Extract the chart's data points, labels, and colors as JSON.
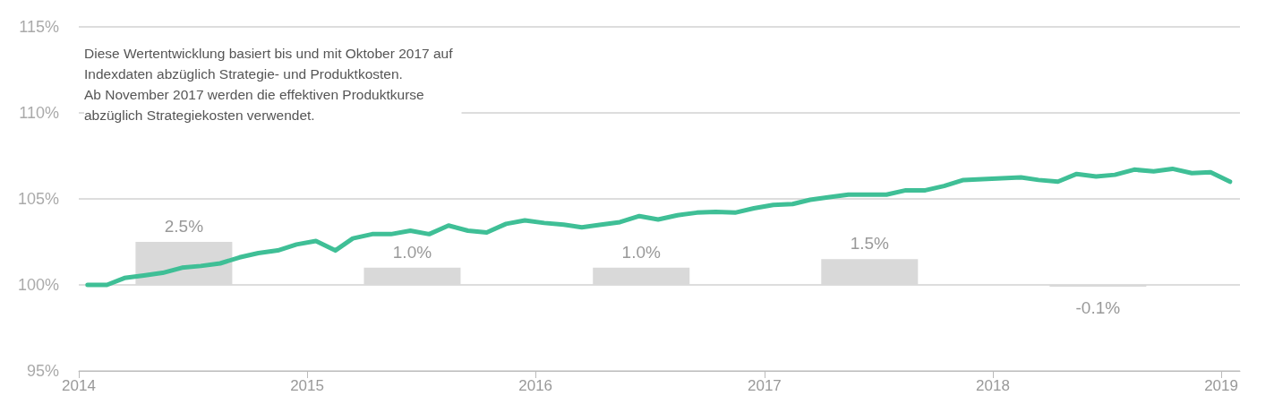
{
  "chart_data": {
    "type": "line",
    "annotations": [
      "Diese Wertentwicklung basiert bis und mit Oktober 2017 auf\nIndexdaten abzüglich Strategie- und Produktkosten.\nAb November 2017 werden die effektiven Produktkurse\nabzüglich Strategiekosten verwendet."
    ],
    "series": [
      {
        "color": "#3fbf96",
        "x": [
          "2014-01-15",
          "2014-02-15",
          "2014-03-15",
          "2014-04-15",
          "2014-05-15",
          "2014-06-15",
          "2014-07-15",
          "2014-08-15",
          "2014-09-15",
          "2014-10-15",
          "2014-11-15",
          "2014-12-15",
          "2015-01-15",
          "2015-02-15",
          "2015-03-15",
          "2015-04-15",
          "2015-05-15",
          "2015-06-15",
          "2015-07-15",
          "2015-08-15",
          "2015-09-15",
          "2015-10-15",
          "2015-11-15",
          "2015-12-15",
          "2016-01-15",
          "2016-02-15",
          "2016-03-15",
          "2016-04-15",
          "2016-05-15",
          "2016-06-15",
          "2016-07-15",
          "2016-08-15",
          "2016-09-15",
          "2016-10-15",
          "2016-11-15",
          "2016-12-15",
          "2017-01-15",
          "2017-02-15",
          "2017-03-15",
          "2017-04-15",
          "2017-05-15",
          "2017-06-15",
          "2017-07-15",
          "2017-08-15",
          "2017-09-15",
          "2017-10-15",
          "2017-11-15",
          "2017-12-15",
          "2018-01-15",
          "2018-02-15",
          "2018-03-15",
          "2018-04-15",
          "2018-05-15",
          "2018-06-15",
          "2018-07-15",
          "2018-08-15",
          "2018-09-15",
          "2018-10-15",
          "2018-11-15",
          "2018-12-15",
          "2019-01-15"
        ],
        "values": [
          100.0,
          100.0,
          100.4,
          100.55,
          100.7,
          101.0,
          101.1,
          101.25,
          101.6,
          101.85,
          102.0,
          102.35,
          102.55,
          102.0,
          102.7,
          102.95,
          102.95,
          103.15,
          102.95,
          103.45,
          103.15,
          103.05,
          103.55,
          103.75,
          103.6,
          103.5,
          103.35,
          103.5,
          103.65,
          104.0,
          103.8,
          104.05,
          104.2,
          104.25,
          104.2,
          104.45,
          104.65,
          104.7,
          104.95,
          105.1,
          105.25,
          105.25,
          105.25,
          105.5,
          105.5,
          105.75,
          106.1,
          106.15,
          106.2,
          106.25,
          106.1,
          106.0,
          106.45,
          106.3,
          106.4,
          106.7,
          106.6,
          106.75,
          106.5,
          106.55,
          106.0
        ]
      },
      {
        "type": "bar",
        "color": "#d9d9d9",
        "x": [
          "2014-06-18",
          "2015-06-18",
          "2016-06-18",
          "2017-06-18",
          "2018-06-18"
        ],
        "base": [
          100,
          100,
          100,
          100,
          100
        ],
        "values": [
          2.5,
          1.0,
          1.0,
          1.5,
          -0.1
        ],
        "value_labels": [
          "2.5%",
          "1.0%",
          "1.0%",
          "1.5%",
          "-0.1%"
        ]
      }
    ],
    "xlim": [
      "2014",
      "2019-01-31"
    ],
    "xticks": [
      "2014",
      "2015",
      "2016",
      "2017",
      "2018",
      "2019"
    ],
    "ylim": [
      95,
      115
    ],
    "yticks": [
      {
        "value": 95,
        "label": "95%"
      },
      {
        "value": 100,
        "label": "100%"
      },
      {
        "value": 105,
        "label": "105%"
      },
      {
        "value": 110,
        "label": "110%"
      },
      {
        "value": 115,
        "label": "115%"
      }
    ],
    "grid": "y",
    "line_style": "solid",
    "marker": "none"
  }
}
